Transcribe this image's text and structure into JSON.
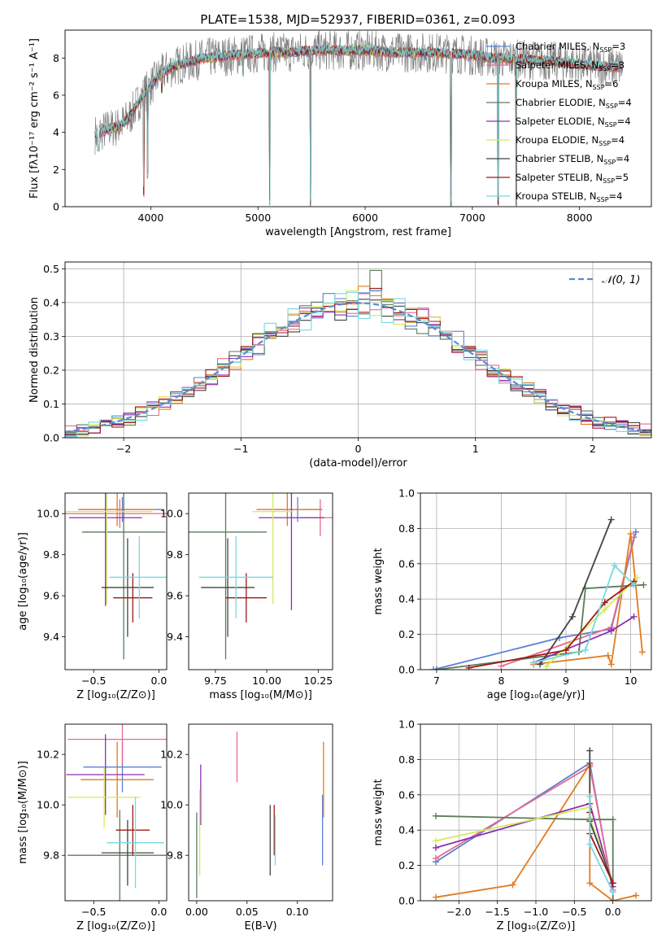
{
  "figure_title": "PLATE=1538, MJD=52937, FIBERID=0361, z=0.093",
  "colors": {
    "Chabrier MILES": "#5b7fd6",
    "Salpeter MILES": "#e86a8f",
    "Kroupa MILES": "#e07b1f",
    "Chabrier ELODIE": "#5a7d5a",
    "Salpeter ELODIE": "#8e2fb0",
    "Kroupa ELODIE": "#d4ec5a",
    "Chabrier STELIB": "#444444",
    "Salpeter STELIB": "#a01818",
    "Kroupa STELIB": "#78d8e0",
    "data": "#808080",
    "gaussian": "#5b8ad6"
  },
  "chart_data": [
    {
      "id": "spectrum",
      "type": "line",
      "xlabel": "wavelength [Angstrom, rest frame]",
      "ylabel": "Flux [fλ10⁻¹⁷ erg cm⁻² s⁻¹ A⁻¹]",
      "xlim": [
        3200,
        8670
      ],
      "ylim": [
        0,
        9.5
      ],
      "xticks": [
        "4000",
        "5000",
        "6000",
        "7000",
        "8000"
      ],
      "yticks": [
        "0",
        "2",
        "4",
        "6",
        "8"
      ],
      "legend": "right",
      "legend_entries": [
        "Chabrier MILES, N_SSP=3",
        "Salpeter MILES, N_SSP=3",
        "Kroupa MILES, N_SSP=6",
        "Chabrier ELODIE, N_SSP=4",
        "Salpeter ELODIE, N_SSP=4",
        "Kroupa ELODIE, N_SSP=4",
        "Chabrier STELIB, N_SSP=4",
        "Salpeter STELIB, N_SSP=5",
        "Kroupa STELIB, N_SSP=4"
      ],
      "continuum": {
        "x": [
          3500,
          3600,
          3700,
          3800,
          3900,
          4000,
          4100,
          4200,
          4300,
          4500,
          4700,
          4900,
          5100,
          5300,
          5500,
          5800,
          6000,
          6300,
          6600,
          6900,
          7200,
          7500,
          7800,
          8100,
          8400
        ],
        "y": [
          3.9,
          4.2,
          4.3,
          4.8,
          5.8,
          6.5,
          7.2,
          7.5,
          7.7,
          8.0,
          8.1,
          8.2,
          8.3,
          8.3,
          8.4,
          8.4,
          8.4,
          8.3,
          8.3,
          8.2,
          8.0,
          7.9,
          7.8,
          7.6,
          7.5
        ]
      },
      "absorption_features": [
        {
          "x": 3934,
          "y": 0.5
        },
        {
          "x": 3969,
          "y": 1.5
        },
        {
          "x": 4102,
          "y": 6.1
        },
        {
          "x": 4861,
          "y": 7.0
        },
        {
          "x": 5110,
          "y": 0.0
        },
        {
          "x": 5490,
          "y": 0.0
        },
        {
          "x": 6800,
          "y": 0.0
        },
        {
          "x": 7240,
          "y": 0.0
        },
        {
          "x": 7410,
          "y": 0.0
        }
      ]
    },
    {
      "id": "residuals",
      "type": "line",
      "xlabel": "(data-model)/error",
      "ylabel": "Normed distribution",
      "xlim": [
        -2.5,
        2.5
      ],
      "ylim": [
        0,
        0.52
      ],
      "xticks": [
        "−2",
        "−1",
        "0",
        "1",
        "2"
      ],
      "yticks": [
        "0.0",
        "0.1",
        "0.2",
        "0.3",
        "0.4",
        "0.5"
      ],
      "grid": true,
      "legend": "top-right",
      "legend_entries": [
        "𝒩(0, 1)"
      ]
    },
    {
      "id": "age-vs-Z",
      "type": "scatter",
      "xlabel": "Z [log₁₀(Z/Z⊙)]",
      "ylabel": "age  [log₁₀(age/yr)]",
      "xlim": [
        -0.72,
        0.06
      ],
      "ylim": [
        9.24,
        10.1
      ],
      "xticks": [
        "−0.5",
        "0.0"
      ],
      "yticks": [
        "9.4",
        "9.6",
        "9.8",
        "10.0"
      ],
      "points": [
        {
          "x": -0.28,
          "xerr": 0.32,
          "y": 10.02,
          "yerr": 0.06
        },
        {
          "x": -0.3,
          "xerr": 0.42,
          "y": 10.0,
          "yerr": 0.07
        },
        {
          "x": -0.32,
          "xerr": 0.3,
          "y": 10.02,
          "yerr": 0.08
        },
        {
          "x": -0.27,
          "xerr": 0.32,
          "y": 9.91,
          "yerr": 0.62
        },
        {
          "x": -0.41,
          "xerr": 0.28,
          "y": 9.98,
          "yerr": 0.43
        },
        {
          "x": -0.4,
          "xerr": 0.35,
          "y": 10.01,
          "yerr": 0.45
        },
        {
          "x": -0.24,
          "xerr": 0.2,
          "y": 9.64,
          "yerr": 0.24
        },
        {
          "x": -0.2,
          "xerr": 0.15,
          "y": 9.59,
          "yerr": 0.12
        },
        {
          "x": -0.15,
          "xerr": 0.23,
          "y": 9.69,
          "yerr": 0.2
        }
      ]
    },
    {
      "id": "age-vs-mass",
      "type": "scatter",
      "xlabel": "mass [log₁₀(M/M⊙)]",
      "ylabel": "",
      "xlim": [
        9.62,
        10.32
      ],
      "ylim": [
        9.24,
        10.1
      ],
      "xticks": [
        "9.75",
        "10.00",
        "10.25"
      ],
      "yticks": [
        "9.4",
        "9.6",
        "9.8",
        "10.0"
      ],
      "points": [
        {
          "x": 10.15,
          "xerr": 0.12,
          "y": 10.02,
          "yerr": 0.06
        },
        {
          "x": 10.26,
          "xerr": 0.1,
          "y": 9.98,
          "yerr": 0.09
        },
        {
          "x": 10.1,
          "xerr": 0.15,
          "y": 10.02,
          "yerr": 0.08
        },
        {
          "x": 9.8,
          "xerr": 0.2,
          "y": 9.91,
          "yerr": 0.62
        },
        {
          "x": 10.12,
          "xerr": 0.16,
          "y": 9.98,
          "yerr": 0.45
        },
        {
          "x": 10.03,
          "xerr": 0.1,
          "y": 10.01,
          "yerr": 0.45
        },
        {
          "x": 9.81,
          "xerr": 0.13,
          "y": 9.64,
          "yerr": 0.24
        },
        {
          "x": 9.9,
          "xerr": 0.1,
          "y": 9.59,
          "yerr": 0.12
        },
        {
          "x": 9.85,
          "xerr": 0.18,
          "y": 9.69,
          "yerr": 0.2
        }
      ]
    },
    {
      "id": "weight-vs-age",
      "type": "line",
      "xlabel": "age  [log₁₀(age/yr)]",
      "ylabel": "mass weight",
      "xlim": [
        6.75,
        10.32
      ],
      "ylim": [
        0,
        1.0
      ],
      "xticks": [
        "7",
        "8",
        "9",
        "10"
      ],
      "yticks": [
        "0.0",
        "0.2",
        "0.4",
        "0.6",
        "0.8",
        "1.0"
      ],
      "grid": true,
      "series": [
        {
          "x": [
            6.95,
            8.9,
            9.7,
            10.08
          ],
          "y": [
            0.0,
            0.18,
            0.23,
            0.78
          ]
        },
        {
          "x": [
            8.0,
            9.7,
            10.05
          ],
          "y": [
            0.02,
            0.24,
            0.75
          ]
        },
        {
          "x": [
            8.5,
            9.65,
            9.7,
            10.0,
            10.18
          ],
          "y": [
            0.03,
            0.08,
            0.03,
            0.77,
            0.1
          ]
        },
        {
          "x": [
            7.0,
            9.2,
            9.3,
            10.2
          ],
          "y": [
            0.0,
            0.1,
            0.46,
            0.48
          ]
        },
        {
          "x": [
            8.5,
            9.7,
            10.05
          ],
          "y": [
            0.04,
            0.22,
            0.3
          ]
        },
        {
          "x": [
            8.7,
            9.6,
            10.1
          ],
          "y": [
            0.02,
            0.34,
            0.52
          ]
        },
        {
          "x": [
            8.6,
            9.1,
            9.7
          ],
          "y": [
            0.03,
            0.3,
            0.85
          ]
        },
        {
          "x": [
            7.5,
            9.0,
            9.6,
            10.05
          ],
          "y": [
            0.01,
            0.11,
            0.38,
            0.5
          ]
        },
        {
          "x": [
            8.5,
            9.3,
            9.75,
            10.05
          ],
          "y": [
            0.04,
            0.11,
            0.59,
            0.48
          ]
        }
      ]
    },
    {
      "id": "mass-vs-Z",
      "type": "scatter",
      "xlabel": "Z [log₁₀(Z/Z⊙)]",
      "ylabel": "mass [log₁₀(M/M⊙)]",
      "xlim": [
        -0.72,
        0.06
      ],
      "ylim": [
        9.62,
        10.32
      ],
      "xticks": [
        "−0.5",
        "0.0"
      ],
      "yticks": [
        "9.8",
        "10.0",
        "10.2"
      ],
      "points": [
        {
          "x": -0.28,
          "xerr": 0.3,
          "y": 10.15,
          "yerr": 0.1
        },
        {
          "x": -0.28,
          "xerr": 0.42,
          "y": 10.26,
          "yerr": 0.1
        },
        {
          "x": -0.32,
          "xerr": 0.28,
          "y": 10.1,
          "yerr": 0.15
        },
        {
          "x": -0.3,
          "xerr": 0.4,
          "y": 9.8,
          "yerr": 0.18
        },
        {
          "x": -0.41,
          "xerr": 0.3,
          "y": 10.12,
          "yerr": 0.16
        },
        {
          "x": -0.42,
          "xerr": 0.28,
          "y": 10.03,
          "yerr": 0.12
        },
        {
          "x": -0.24,
          "xerr": 0.2,
          "y": 9.81,
          "yerr": 0.13
        },
        {
          "x": -0.2,
          "xerr": 0.13,
          "y": 9.9,
          "yerr": 0.1
        },
        {
          "x": -0.18,
          "xerr": 0.22,
          "y": 9.85,
          "yerr": 0.18
        }
      ]
    },
    {
      "id": "mass-vs-EBV",
      "type": "scatter",
      "xlabel": "E(B-V)",
      "ylabel": "",
      "xlim": [
        -0.008,
        0.135
      ],
      "ylim": [
        9.62,
        10.32
      ],
      "xticks": [
        "0.00",
        "0.05",
        "0.10"
      ],
      "yticks": [
        "9.8",
        "10.0",
        "10.2"
      ],
      "points": [
        {
          "x": 0.125,
          "y": 9.9,
          "yerr": 0.14
        },
        {
          "x": 0.04,
          "y": 10.19,
          "yerr": 0.1
        },
        {
          "x": 0.126,
          "y": 10.1,
          "yerr": 0.15
        },
        {
          "x": 0.0,
          "y": 9.8,
          "yerr": 0.17
        },
        {
          "x": 0.004,
          "y": 10.04,
          "yerr": 0.12
        },
        {
          "x": 0.003,
          "y": 9.89,
          "yerr": 0.17
        },
        {
          "x": 0.073,
          "y": 9.86,
          "yerr": 0.14
        },
        {
          "x": 0.077,
          "y": 9.9,
          "yerr": 0.1
        },
        {
          "x": 0.078,
          "y": 9.86,
          "yerr": 0.1
        }
      ]
    },
    {
      "id": "weight-vs-Z",
      "type": "line",
      "xlabel": "Z [log₁₀(Z/Z⊙)]",
      "ylabel": "mass weight",
      "xlim": [
        -2.5,
        0.5
      ],
      "ylim": [
        0,
        1.0
      ],
      "xticks": [
        "−2.0",
        "−1.5",
        "−1.0",
        "−0.5",
        "0.0"
      ],
      "yticks": [
        "0.0",
        "0.2",
        "0.4",
        "0.6",
        "0.8",
        "1.0"
      ],
      "grid": true,
      "series": [
        {
          "x": [
            -2.3,
            -0.3,
            0.0
          ],
          "y": [
            0.22,
            0.78,
            0.05
          ]
        },
        {
          "x": [
            -2.3,
            -0.3,
            0.0
          ],
          "y": [
            0.24,
            0.76,
            0.06
          ]
        },
        {
          "x": [
            -2.3,
            -1.3,
            -0.3,
            -0.3,
            0.0,
            0.3
          ],
          "y": [
            0.02,
            0.09,
            0.77,
            0.1,
            0.0,
            0.03
          ]
        },
        {
          "x": [
            -2.3,
            -0.3,
            0.0,
            0.0
          ],
          "y": [
            0.48,
            0.46,
            0.46,
            0.0
          ]
        },
        {
          "x": [
            -2.3,
            -0.3,
            0.0
          ],
          "y": [
            0.3,
            0.55,
            0.08
          ]
        },
        {
          "x": [
            -2.3,
            -0.3,
            -0.3,
            0.0
          ],
          "y": [
            0.34,
            0.53,
            0.47,
            0.1
          ]
        },
        {
          "x": [
            -0.3,
            -0.3,
            0.0
          ],
          "y": [
            0.85,
            0.45,
            0.1
          ]
        },
        {
          "x": [
            -0.3,
            -0.3,
            0.0
          ],
          "y": [
            0.5,
            0.38,
            0.1
          ]
        },
        {
          "x": [
            -0.3,
            -0.3,
            0.0
          ],
          "y": [
            0.59,
            0.32,
            0.05
          ]
        }
      ]
    }
  ]
}
